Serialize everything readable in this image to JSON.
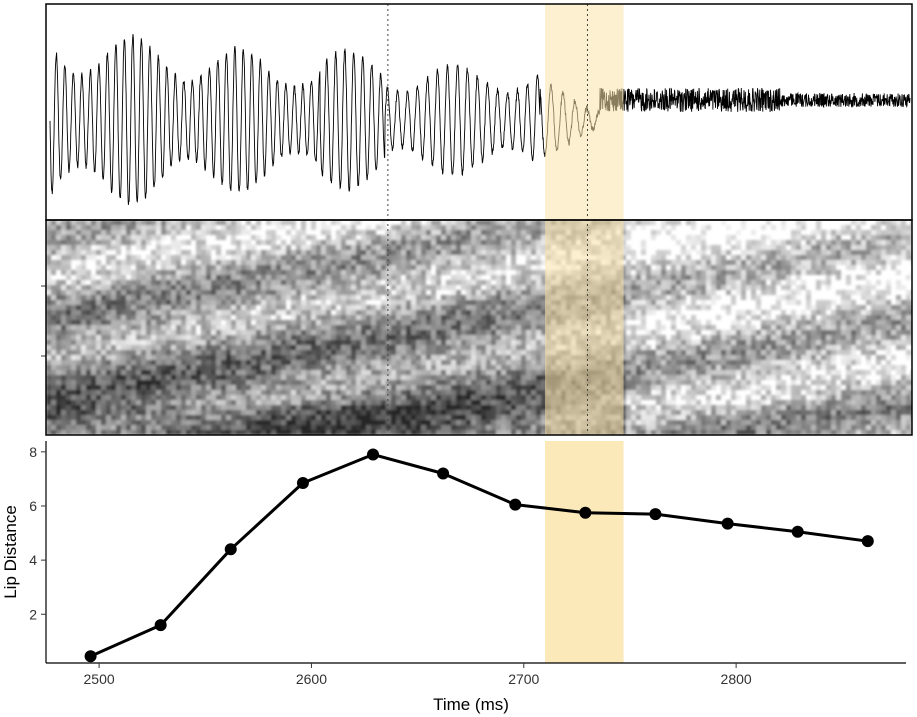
{
  "figure": {
    "highlight_interval_ms": [
      2710,
      2747
    ],
    "highlight_color": "#fbe3a9",
    "marker_times_ms": [
      2636,
      2730
    ]
  },
  "chart_data": {
    "type": "line",
    "title": "",
    "xlabel": "Time (ms)",
    "ylabel": "Lip Distance",
    "xlim": [
      2475,
      2880
    ],
    "ylim": [
      0.2,
      8.4
    ],
    "x_ticks": [
      2500,
      2600,
      2700,
      2800
    ],
    "y_ticks": [
      2,
      4,
      6,
      8
    ],
    "grid": false,
    "series": [
      {
        "x": [
          2496,
          2529,
          2562,
          2596,
          2629,
          2662,
          2696,
          2729,
          2762,
          2796,
          2829,
          2862
        ],
        "y": [
          0.45,
          1.6,
          4.4,
          6.85,
          7.9,
          7.2,
          6.05,
          5.75,
          5.7,
          5.35,
          5.05,
          4.7
        ]
      }
    ]
  },
  "x_tick_labels": [
    "2500",
    "2600",
    "2700",
    "2800"
  ],
  "y_tick_labels": [
    "2",
    "4",
    "6",
    "8"
  ]
}
